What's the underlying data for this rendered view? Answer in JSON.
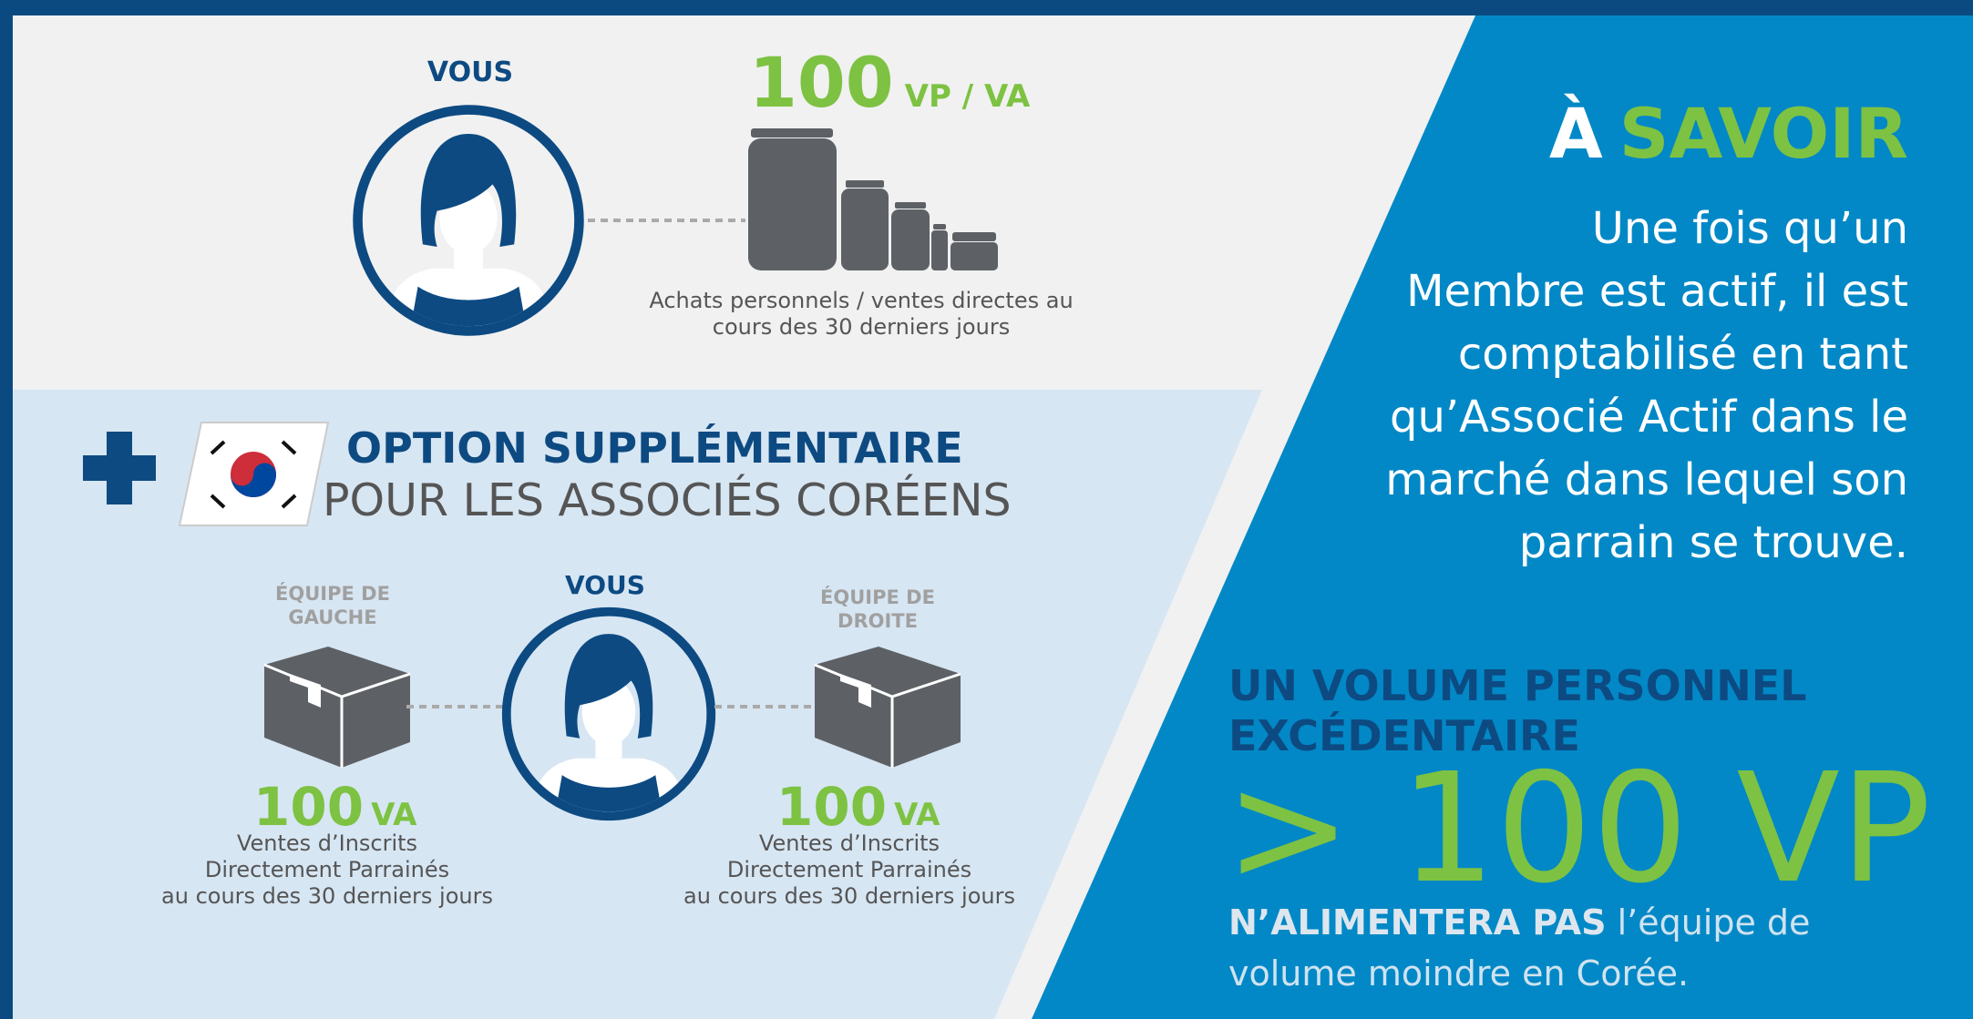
{
  "top": {
    "label": "VOUS",
    "amount": 100,
    "unit": "VP / VA",
    "caption": [
      "Achats personnels / ventes directes au",
      "cours des 30 derniers jours"
    ]
  },
  "option": {
    "title": "OPTION SUPPLÉMENTAIRE",
    "subtitle": "POUR LES ASSOCIÉS CORÉENS",
    "center_label": "VOUS",
    "left": {
      "label": [
        "ÉQUIPE DE",
        "GAUCHE"
      ],
      "amount": 100,
      "unit": "VA",
      "caption": [
        "Ventes d’Inscrits",
        "Directement Parrainés",
        "au cours des 30 derniers jours"
      ]
    },
    "right": {
      "label": [
        "ÉQUIPE DE",
        "DROITE"
      ],
      "amount": 100,
      "unit": "VA",
      "caption": [
        "Ventes d’Inscrits",
        "Directement Parrainés",
        "au cours des 30 derniers jours"
      ]
    }
  },
  "savoir": {
    "heading": [
      "À",
      "SAVOIR"
    ],
    "body": [
      "Une fois qu’un",
      "Membre est actif, il est",
      "comptabilisé en tant",
      "qu’Associé Actif dans le",
      "marché dans lequel son",
      "parrain se trouve."
    ]
  },
  "volume": {
    "title": [
      "UN VOLUME PERSONNEL",
      "EXCÉDENTAIRE"
    ],
    "big": [
      "> ",
      "100 VP"
    ],
    "footer": {
      "bold": "N’ALIMENTERA PAS",
      "rest": " l’équipe de",
      "line2": "volume moindre en Corée."
    }
  }
}
